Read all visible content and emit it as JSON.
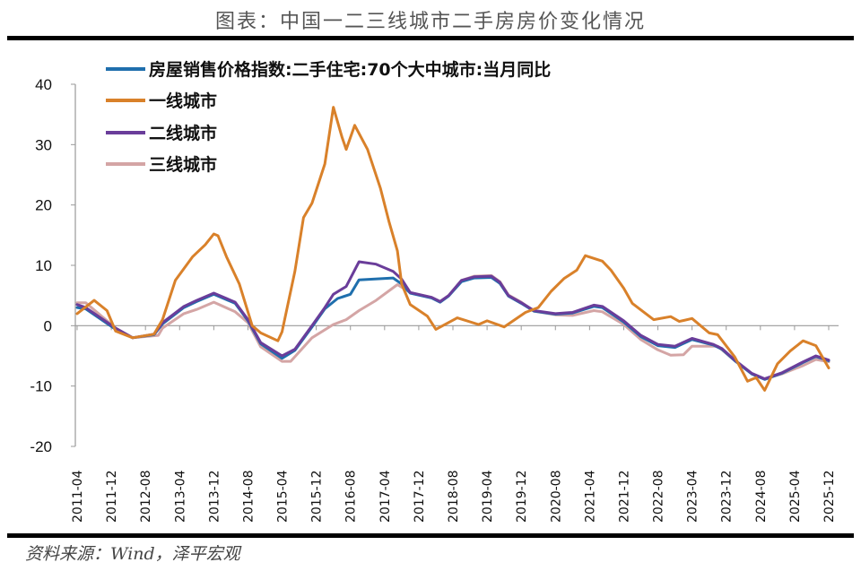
{
  "title": "图表：中国一二三线城市二手房房价变化情况",
  "source": "资料来源：Wind，泽平宏观",
  "chart_data": {
    "type": "line",
    "title": "图表：中国一二三线城市二手房房价变化情况",
    "xlabel": "",
    "ylabel": "",
    "ylim": [
      -20,
      40
    ],
    "yticks": [
      40,
      30,
      20,
      10,
      0,
      -10,
      -20
    ],
    "xlim": [
      "2011-04",
      "2025-12"
    ],
    "xticks": [
      "2011-04",
      "2011-12",
      "2012-08",
      "2013-04",
      "2013-12",
      "2014-08",
      "2015-04",
      "2015-12",
      "2016-08",
      "2017-04",
      "2017-12",
      "2018-08",
      "2019-04",
      "2019-12",
      "2020-08",
      "2021-04",
      "2021-12",
      "2022-08",
      "2023-04",
      "2023-12",
      "2024-08",
      "2025-04",
      "2025-12"
    ],
    "grid": false,
    "legend_position": "top-left",
    "series": [
      {
        "name": "房屋销售价格指数:二手住宅:70个大中城市:当月同比",
        "color": "#1f6fad",
        "points": [
          [
            "2011-04",
            3.0
          ],
          [
            "2011-06",
            2.8
          ],
          [
            "2012-01",
            -0.6
          ],
          [
            "2012-05",
            -2.0
          ],
          [
            "2012-10",
            -1.5
          ],
          [
            "2012-12",
            0.3
          ],
          [
            "2013-05",
            3.0
          ],
          [
            "2013-08",
            4.0
          ],
          [
            "2013-12",
            5.2
          ],
          [
            "2014-05",
            3.7
          ],
          [
            "2014-08",
            0.8
          ],
          [
            "2014-11",
            -3.0
          ],
          [
            "2015-04",
            -5.4
          ],
          [
            "2015-07",
            -4.1
          ],
          [
            "2015-11",
            -0.2
          ],
          [
            "2016-02",
            2.8
          ],
          [
            "2016-05",
            4.5
          ],
          [
            "2016-08",
            5.2
          ],
          [
            "2016-10",
            7.6
          ],
          [
            "2017-06",
            7.9
          ],
          [
            "2017-08",
            6.9
          ],
          [
            "2017-10",
            5.4
          ],
          [
            "2018-03",
            4.6
          ],
          [
            "2018-05",
            3.9
          ],
          [
            "2018-07",
            4.9
          ],
          [
            "2018-10",
            7.3
          ],
          [
            "2019-01",
            7.9
          ],
          [
            "2019-05",
            8.0
          ],
          [
            "2019-07",
            7.0
          ],
          [
            "2019-09",
            4.9
          ],
          [
            "2019-12",
            3.7
          ],
          [
            "2020-03",
            2.4
          ],
          [
            "2020-08",
            1.9
          ],
          [
            "2020-12",
            2.1
          ],
          [
            "2021-05",
            3.2
          ],
          [
            "2021-07",
            3.0
          ],
          [
            "2021-12",
            0.6
          ],
          [
            "2022-04",
            -1.8
          ],
          [
            "2022-08",
            -3.3
          ],
          [
            "2022-12",
            -3.6
          ],
          [
            "2023-04",
            -2.3
          ],
          [
            "2023-09",
            -3.2
          ],
          [
            "2023-11",
            -3.9
          ],
          [
            "2024-02",
            -5.8
          ],
          [
            "2024-06",
            -8.0
          ],
          [
            "2024-09",
            -8.9
          ],
          [
            "2025-01",
            -7.9
          ],
          [
            "2025-06",
            -6.1
          ],
          [
            "2025-09",
            -5.1
          ],
          [
            "2025-12",
            -5.8
          ]
        ]
      },
      {
        "name": "一线城市",
        "color": "#d9812a",
        "points": [
          [
            "2011-04",
            2.0
          ],
          [
            "2011-08",
            4.2
          ],
          [
            "2011-11",
            2.5
          ],
          [
            "2012-01",
            -0.9
          ],
          [
            "2012-05",
            -2.0
          ],
          [
            "2012-10",
            -1.4
          ],
          [
            "2012-12",
            1.0
          ],
          [
            "2013-03",
            7.5
          ],
          [
            "2013-07",
            11.4
          ],
          [
            "2013-10",
            13.4
          ],
          [
            "2013-12",
            15.2
          ],
          [
            "2014-01",
            14.9
          ],
          [
            "2014-03",
            11.4
          ],
          [
            "2014-06",
            6.9
          ],
          [
            "2014-09",
            0.0
          ],
          [
            "2014-11",
            -1.2
          ],
          [
            "2015-03",
            -2.5
          ],
          [
            "2015-04",
            -1.0
          ],
          [
            "2015-07",
            9.0
          ],
          [
            "2015-09",
            17.9
          ],
          [
            "2015-11",
            20.3
          ],
          [
            "2016-02",
            26.8
          ],
          [
            "2016-04",
            36.2
          ],
          [
            "2016-06",
            31.3
          ],
          [
            "2016-07",
            29.2
          ],
          [
            "2016-09",
            33.2
          ],
          [
            "2016-12",
            29.2
          ],
          [
            "2017-03",
            22.8
          ],
          [
            "2017-05",
            17.3
          ],
          [
            "2017-07",
            12.4
          ],
          [
            "2017-08",
            6.9
          ],
          [
            "2017-10",
            3.5
          ],
          [
            "2018-02",
            1.6
          ],
          [
            "2018-04",
            -0.6
          ],
          [
            "2018-09",
            1.3
          ],
          [
            "2019-02",
            0.2
          ],
          [
            "2019-04",
            0.8
          ],
          [
            "2019-08",
            -0.2
          ],
          [
            "2020-01",
            2.2
          ],
          [
            "2020-04",
            3.0
          ],
          [
            "2020-07",
            5.7
          ],
          [
            "2020-10",
            7.8
          ],
          [
            "2021-01",
            9.2
          ],
          [
            "2021-03",
            11.6
          ],
          [
            "2021-07",
            10.7
          ],
          [
            "2021-09",
            9.2
          ],
          [
            "2021-12",
            6.2
          ],
          [
            "2022-02",
            3.7
          ],
          [
            "2022-07",
            1.0
          ],
          [
            "2022-11",
            1.5
          ],
          [
            "2023-01",
            0.7
          ],
          [
            "2023-04",
            1.2
          ],
          [
            "2023-08",
            -1.2
          ],
          [
            "2023-10",
            -1.5
          ],
          [
            "2024-02",
            -5.2
          ],
          [
            "2024-05",
            -9.2
          ],
          [
            "2024-07",
            -8.6
          ],
          [
            "2024-09",
            -10.7
          ],
          [
            "2024-12",
            -6.3
          ],
          [
            "2025-03",
            -4.2
          ],
          [
            "2025-06",
            -2.5
          ],
          [
            "2025-09",
            -3.3
          ],
          [
            "2025-12",
            -7.0
          ]
        ]
      },
      {
        "name": "二线城市",
        "color": "#6a3d9a",
        "points": [
          [
            "2011-04",
            3.5
          ],
          [
            "2011-06",
            3.0
          ],
          [
            "2012-01",
            -0.4
          ],
          [
            "2012-05",
            -2.0
          ],
          [
            "2012-10",
            -1.4
          ],
          [
            "2012-12",
            0.5
          ],
          [
            "2013-05",
            3.2
          ],
          [
            "2013-08",
            4.2
          ],
          [
            "2013-12",
            5.4
          ],
          [
            "2014-05",
            3.9
          ],
          [
            "2014-08",
            1.0
          ],
          [
            "2014-11",
            -2.8
          ],
          [
            "2015-04",
            -5.0
          ],
          [
            "2015-07",
            -3.9
          ],
          [
            "2015-11",
            0.0
          ],
          [
            "2016-02",
            3.0
          ],
          [
            "2016-04",
            5.2
          ],
          [
            "2016-07",
            6.5
          ],
          [
            "2016-10",
            10.6
          ],
          [
            "2017-02",
            10.2
          ],
          [
            "2017-06",
            9.0
          ],
          [
            "2017-08",
            7.7
          ],
          [
            "2017-10",
            5.5
          ],
          [
            "2018-03",
            4.7
          ],
          [
            "2018-05",
            4.0
          ],
          [
            "2018-07",
            5.0
          ],
          [
            "2018-10",
            7.5
          ],
          [
            "2019-01",
            8.1
          ],
          [
            "2019-05",
            8.2
          ],
          [
            "2019-07",
            7.2
          ],
          [
            "2019-09",
            5.0
          ],
          [
            "2019-12",
            3.8
          ],
          [
            "2020-03",
            2.5
          ],
          [
            "2020-08",
            2.0
          ],
          [
            "2020-12",
            2.2
          ],
          [
            "2021-05",
            3.4
          ],
          [
            "2021-07",
            3.2
          ],
          [
            "2021-12",
            0.8
          ],
          [
            "2022-04",
            -1.6
          ],
          [
            "2022-08",
            -3.1
          ],
          [
            "2022-12",
            -3.4
          ],
          [
            "2023-04",
            -2.1
          ],
          [
            "2023-09",
            -3.1
          ],
          [
            "2023-11",
            -3.8
          ],
          [
            "2024-02",
            -5.7
          ],
          [
            "2024-06",
            -7.9
          ],
          [
            "2024-09",
            -8.8
          ],
          [
            "2025-01",
            -7.8
          ],
          [
            "2025-06",
            -6.0
          ],
          [
            "2025-09",
            -5.0
          ],
          [
            "2025-12",
            -5.7
          ]
        ]
      },
      {
        "name": "三线城市",
        "color": "#d4a5a5",
        "points": [
          [
            "2011-04",
            3.8
          ],
          [
            "2011-06",
            3.8
          ],
          [
            "2012-01",
            -0.4
          ],
          [
            "2012-05",
            -2.0
          ],
          [
            "2012-11",
            -1.6
          ],
          [
            "2012-12",
            -0.4
          ],
          [
            "2013-05",
            2.0
          ],
          [
            "2013-08",
            2.7
          ],
          [
            "2013-12",
            3.9
          ],
          [
            "2014-05",
            2.3
          ],
          [
            "2014-08",
            0.5
          ],
          [
            "2014-11",
            -3.5
          ],
          [
            "2015-04",
            -5.9
          ],
          [
            "2015-06",
            -5.9
          ],
          [
            "2015-11",
            -2.0
          ],
          [
            "2016-04",
            0.2
          ],
          [
            "2016-07",
            1.0
          ],
          [
            "2016-10",
            2.5
          ],
          [
            "2017-02",
            4.2
          ],
          [
            "2017-07",
            6.8
          ],
          [
            "2017-10",
            5.5
          ],
          [
            "2018-03",
            4.7
          ],
          [
            "2018-05",
            4.0
          ],
          [
            "2018-07",
            5.0
          ],
          [
            "2018-10",
            7.5
          ],
          [
            "2019-01",
            8.2
          ],
          [
            "2019-05",
            8.3
          ],
          [
            "2019-07",
            7.3
          ],
          [
            "2019-09",
            5.1
          ],
          [
            "2019-12",
            3.9
          ],
          [
            "2020-03",
            2.4
          ],
          [
            "2020-08",
            1.8
          ],
          [
            "2020-12",
            1.7
          ],
          [
            "2021-05",
            2.5
          ],
          [
            "2021-07",
            2.3
          ],
          [
            "2021-12",
            0.2
          ],
          [
            "2022-04",
            -2.3
          ],
          [
            "2022-08",
            -4.0
          ],
          [
            "2022-11",
            -4.9
          ],
          [
            "2023-02",
            -4.8
          ],
          [
            "2023-04",
            -3.4
          ],
          [
            "2023-10",
            -3.4
          ],
          [
            "2024-02",
            -5.8
          ],
          [
            "2024-06",
            -8.0
          ],
          [
            "2024-09",
            -8.8
          ],
          [
            "2025-01",
            -8.0
          ],
          [
            "2025-06",
            -6.6
          ],
          [
            "2025-09",
            -5.6
          ],
          [
            "2025-12",
            -6.0
          ]
        ]
      }
    ]
  }
}
